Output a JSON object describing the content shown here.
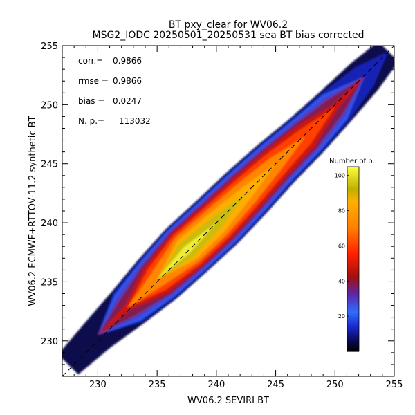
{
  "chart_data": {
    "type": "heatmap",
    "title": "BT pxy_clear for WV06.2",
    "subtitle": "MSG2_IODC 20250501_20250531 sea BT bias corrected",
    "xlabel": "WV06.2 SEVIRI BT",
    "ylabel": "WV06.2 ECMWF+RTTOV-11.2 synthetic BT",
    "xlim": [
      227,
      255
    ],
    "ylim": [
      227,
      255
    ],
    "x_ticks": [
      "230",
      "235",
      "240",
      "245",
      "250",
      "255"
    ],
    "y_ticks": [
      "230",
      "235",
      "240",
      "245",
      "250",
      "255"
    ],
    "grid": false,
    "reference_line": "dashed y = x",
    "stats": [
      {
        "label": "corr.=",
        "value": "0.9866"
      },
      {
        "label": "rmse =",
        "value": "0.9866"
      },
      {
        "label": "bias =",
        "value": "0.0247"
      },
      {
        "label": "N. p.=",
        "value": "113032"
      }
    ],
    "colorbar": {
      "title": "Number of p.",
      "range": [
        0,
        105
      ],
      "ticks": [
        "20",
        "40",
        "60",
        "80",
        "100"
      ],
      "placement": "right-inside",
      "colors": [
        "#000000",
        "#0a0a60",
        "#1a2ad0",
        "#2f6cff",
        "#6a2aa0",
        "#a01010",
        "#ff2000",
        "#ff8000",
        "#ffb000",
        "#c0b000",
        "#ffff40"
      ]
    },
    "density_ridge": [
      {
        "x": 227.5,
        "y": 228.0,
        "half_width": 1.2,
        "peak": 2
      },
      {
        "x": 230.0,
        "y": 230.5,
        "half_width": 1.5,
        "peak": 6
      },
      {
        "x": 232.5,
        "y": 232.8,
        "half_width": 1.9,
        "peak": 45
      },
      {
        "x": 235.0,
        "y": 235.2,
        "half_width": 2.3,
        "peak": 75
      },
      {
        "x": 237.5,
        "y": 237.7,
        "half_width": 2.5,
        "peak": 100
      },
      {
        "x": 240.0,
        "y": 240.0,
        "half_width": 2.5,
        "peak": 95
      },
      {
        "x": 242.5,
        "y": 242.5,
        "half_width": 2.4,
        "peak": 85
      },
      {
        "x": 245.0,
        "y": 245.0,
        "half_width": 2.2,
        "peak": 75
      },
      {
        "x": 247.5,
        "y": 247.3,
        "half_width": 2.0,
        "peak": 65
      },
      {
        "x": 250.0,
        "y": 249.8,
        "half_width": 1.8,
        "peak": 45
      },
      {
        "x": 252.5,
        "y": 252.4,
        "half_width": 1.6,
        "peak": 15
      },
      {
        "x": 254.5,
        "y": 254.5,
        "half_width": 1.2,
        "peak": 2
      }
    ]
  }
}
